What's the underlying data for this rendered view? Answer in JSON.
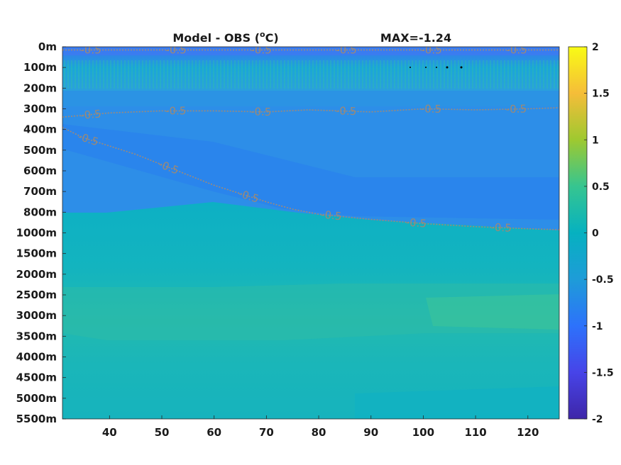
{
  "chart_data": {
    "type": "heatmap",
    "title": "Model - OBS (°C)",
    "title_parts": {
      "prefix": "Model - OBS (",
      "sup": "o",
      "suffix": "C)"
    },
    "max_label": "MAX=-1.24",
    "xlabel": "",
    "ylabel": "",
    "xlim": [
      31,
      126
    ],
    "x_ticks": [
      40,
      50,
      60,
      70,
      80,
      90,
      100,
      110,
      120
    ],
    "x_tick_labels": [
      "40",
      "50",
      "60",
      "70",
      "80",
      "90",
      "100",
      "110",
      "120"
    ],
    "y_tick_labels": [
      "0m",
      "100m",
      "200m",
      "300m",
      "400m",
      "500m",
      "600m",
      "700m",
      "800m",
      "1000m",
      "1500m",
      "2000m",
      "2500m",
      "3000m",
      "3500m",
      "4000m",
      "4500m",
      "5000m",
      "5500m"
    ],
    "y_scale": "categorical-depth-levels",
    "colormap": "parula",
    "clim": [
      -2,
      2
    ],
    "colorbar_ticks": [
      2,
      1.5,
      1,
      0.5,
      0,
      -0.5,
      -1,
      -1.5,
      -2
    ],
    "colorbar_tick_labels": [
      "2",
      "1.5",
      "1",
      "0.5",
      "0",
      "-0.5",
      "-1",
      "-1.5",
      "-2"
    ],
    "contour_level": -0.5,
    "contour_label": "-0.5",
    "contour_lines": [
      {
        "name": "upper",
        "points": [
          [
            31,
            0.15
          ],
          [
            45,
            0.15
          ],
          [
            60,
            0.15
          ],
          [
            75,
            0.15
          ],
          [
            90,
            0.15
          ],
          [
            105,
            0.15
          ],
          [
            126,
            0.15
          ]
        ]
      },
      {
        "name": "middle",
        "points": [
          [
            31,
            3.4
          ],
          [
            40,
            3.2
          ],
          [
            50,
            3.1
          ],
          [
            60,
            3.1
          ],
          [
            70,
            3.15
          ],
          [
            78,
            3.05
          ],
          [
            90,
            3.15
          ],
          [
            100,
            3.0
          ],
          [
            110,
            3.05
          ],
          [
            120,
            3.0
          ],
          [
            126,
            2.95
          ]
        ]
      },
      {
        "name": "lower",
        "points": [
          [
            31,
            3.9
          ],
          [
            35,
            4.4
          ],
          [
            40,
            4.8
          ],
          [
            45,
            5.2
          ],
          [
            50,
            5.7
          ],
          [
            55,
            6.2
          ],
          [
            60,
            6.7
          ],
          [
            65,
            7.1
          ],
          [
            70,
            7.5
          ],
          [
            75,
            7.85
          ],
          [
            80,
            8.1
          ],
          [
            90,
            8.35
          ],
          [
            100,
            8.55
          ],
          [
            110,
            8.7
          ],
          [
            120,
            8.8
          ],
          [
            126,
            8.85
          ]
        ]
      }
    ]
  }
}
